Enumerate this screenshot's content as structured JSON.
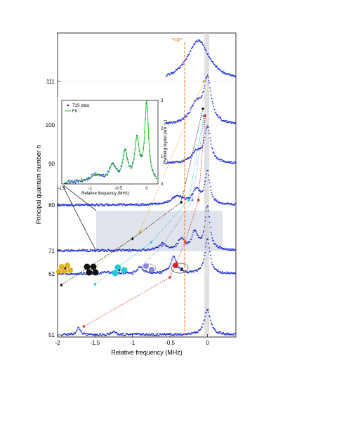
{
  "chart_data": {
    "type": "line",
    "xlabel": "Relative frequency (MHz)",
    "ylabel": "Principal quantum number n",
    "xlim": [
      -2,
      0.38
    ],
    "xticks": [
      "-2",
      "-1.5",
      "-1",
      "-0.5",
      "0"
    ],
    "yticks": [
      "51",
      "62",
      "71",
      "80",
      "90",
      "100",
      "111"
    ],
    "annotation_label": "<cg>",
    "annotation_x": -0.3,
    "colors": {
      "data": "#1a2bd6",
      "eg_line": "#e8721e",
      "fit": "#22cc22",
      "band": "#dfe3ec",
      "center_band": "#cccccc"
    },
    "series": [
      {
        "n": 51,
        "peaks": [
          [
            0.0,
            0.9,
            0.05
          ],
          [
            -1.72,
            0.25,
            0.03
          ],
          [
            -1.25,
            0.1,
            0.04
          ],
          [
            -0.95,
            0.04,
            0.05
          ]
        ]
      },
      {
        "n": 62,
        "peaks": [
          [
            0.0,
            1.0,
            0.04
          ],
          [
            -0.45,
            0.5,
            0.05
          ],
          [
            -0.9,
            0.18,
            0.05
          ],
          [
            -1.35,
            0.05,
            0.06
          ]
        ]
      },
      {
        "n": 71,
        "peaks": [
          [
            0.0,
            1.0,
            0.04
          ],
          [
            -0.17,
            0.4,
            0.05
          ],
          [
            -0.35,
            0.25,
            0.05
          ],
          [
            -0.6,
            0.15,
            0.06
          ]
        ]
      },
      {
        "n": 80,
        "peaks": [
          [
            0.0,
            0.8,
            0.04
          ],
          [
            -0.15,
            0.35,
            0.06
          ],
          [
            -0.4,
            0.2,
            0.1
          ]
        ]
      },
      {
        "n": 90,
        "peaks": [
          [
            0.0,
            1.0,
            0.05
          ],
          [
            -0.15,
            0.3,
            0.08
          ]
        ]
      },
      {
        "n": 100,
        "peaks": [
          [
            0.0,
            1.0,
            0.06
          ],
          [
            -0.15,
            0.45,
            0.1
          ]
        ]
      },
      {
        "n": 111,
        "peaks": [
          [
            -0.12,
            1.0,
            0.18
          ]
        ]
      }
    ],
    "inset": {
      "xlabel": "Relative frequency (MHz)",
      "ylabel": "Rydberg signal (arb. u.)",
      "xlim": [
        -1.5,
        0.2
      ],
      "ylim": [
        0,
        3
      ],
      "xticks": [
        "-1.5",
        "-1",
        "-0.5",
        "0"
      ],
      "yticks": [
        "0",
        "1",
        "2",
        "3"
      ],
      "legend": [
        "71S data",
        "Fit"
      ],
      "peaks": [
        [
          0.0,
          2.8,
          0.04
        ],
        [
          -0.17,
          1.45,
          0.05
        ],
        [
          -0.38,
          1.05,
          0.05
        ],
        [
          -0.6,
          0.6,
          0.07
        ],
        [
          -0.9,
          0.25,
          0.12
        ]
      ]
    }
  }
}
